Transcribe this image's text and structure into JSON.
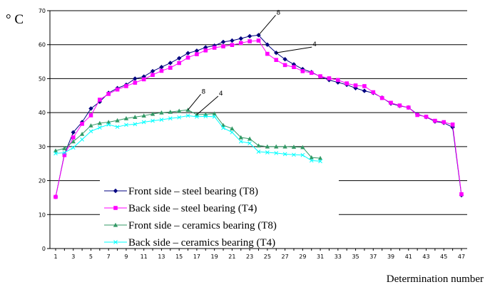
{
  "chart_data": {
    "type": "line",
    "title": "",
    "ylabel": "° C",
    "xlabel": "Determination number",
    "ylim": [
      0,
      70
    ],
    "yticks": [
      0,
      10,
      20,
      30,
      40,
      50,
      60,
      70
    ],
    "xlim": [
      1,
      47
    ],
    "xticks": [
      1,
      3,
      5,
      7,
      9,
      11,
      13,
      15,
      17,
      19,
      21,
      23,
      25,
      27,
      29,
      31,
      33,
      35,
      37,
      39,
      41,
      43,
      45,
      47
    ],
    "grid": "horizontal",
    "legend_position": "bottom-center",
    "series": [
      {
        "name": "Front side – steel bearing (T8)",
        "color": "#000080",
        "marker": "diamond",
        "x": [
          1,
          2,
          3,
          4,
          5,
          6,
          7,
          8,
          9,
          10,
          11,
          12,
          13,
          14,
          15,
          16,
          17,
          18,
          19,
          20,
          21,
          22,
          23,
          24,
          25,
          26,
          27,
          28,
          29,
          30,
          31,
          32,
          33,
          34,
          35,
          36,
          37,
          38,
          39,
          40,
          41,
          42,
          43,
          44,
          45,
          46,
          47
        ],
        "values": [
          15.2,
          27.8,
          34.2,
          37.2,
          41.2,
          43.2,
          45.8,
          47.2,
          48.2,
          50,
          50.6,
          52.2,
          53.4,
          54.6,
          56,
          57.5,
          58.2,
          59.2,
          59.7,
          60.8,
          61.2,
          61.8,
          62.5,
          62.8,
          60,
          57.6,
          55.7,
          54.2,
          52.8,
          51.9,
          50.6,
          49.6,
          48.9,
          48.2,
          47.2,
          46.4,
          45.8,
          44.4,
          42.7,
          42,
          41.5,
          39.5,
          38.7,
          37.4,
          37,
          35.7,
          15.7
        ]
      },
      {
        "name": "Back side – steel bearing (T4)",
        "color": "#ff00ff",
        "marker": "square",
        "x": [
          1,
          2,
          3,
          4,
          5,
          6,
          7,
          8,
          9,
          10,
          11,
          12,
          13,
          14,
          15,
          16,
          17,
          18,
          19,
          20,
          21,
          22,
          23,
          24,
          25,
          26,
          27,
          28,
          29,
          30,
          31,
          32,
          33,
          34,
          35,
          36,
          37,
          38,
          39,
          40,
          41,
          42,
          43,
          44,
          45,
          46,
          47
        ],
        "values": [
          15.2,
          27.5,
          32.7,
          36.7,
          39.2,
          43.8,
          45.5,
          46.8,
          47.8,
          48.8,
          49.8,
          51.1,
          52.3,
          53.2,
          54.6,
          56.2,
          57.2,
          58.3,
          59.1,
          59.5,
          59.9,
          60.5,
          61,
          61.2,
          57.3,
          55.5,
          54,
          53.4,
          52.2,
          51.7,
          50.7,
          50.1,
          49.6,
          48.6,
          48,
          47.8,
          46,
          44.3,
          42.9,
          42.1,
          41.5,
          39.3,
          38.8,
          37.6,
          37.2,
          36.5,
          16
        ]
      },
      {
        "name": "Front side – ceramics bearing (T8)",
        "color": "#339966",
        "marker": "triangle",
        "x": [
          1,
          2,
          3,
          4,
          5,
          6,
          7,
          8,
          9,
          10,
          11,
          12,
          13,
          14,
          15,
          16,
          17,
          18,
          19,
          20,
          21,
          22,
          23,
          24,
          25,
          26,
          27,
          28,
          29,
          30,
          31
        ],
        "values": [
          28.8,
          29.5,
          31.5,
          33.7,
          36.2,
          36.9,
          37.2,
          37.7,
          38.3,
          38.7,
          39.1,
          39.6,
          40,
          40.2,
          40.5,
          40.8,
          39.4,
          39.5,
          39.7,
          36.3,
          35.3,
          32.7,
          32.3,
          30.3,
          30,
          30,
          30,
          29.9,
          29.8,
          26.8,
          26.6
        ]
      },
      {
        "name": "Back side – ceramics bearing (T4)",
        "color": "#00ffff",
        "marker": "x",
        "x": [
          1,
          2,
          3,
          4,
          5,
          6,
          7,
          8,
          9,
          10,
          11,
          12,
          13,
          14,
          15,
          16,
          17,
          18,
          19,
          20,
          21,
          22,
          23,
          24,
          25,
          26,
          27,
          28,
          29,
          30,
          31
        ],
        "values": [
          28,
          28.2,
          29.7,
          32.1,
          34.5,
          35.6,
          36.5,
          35.8,
          36.4,
          36.6,
          37.2,
          37.6,
          37.9,
          38.3,
          38.6,
          39.1,
          38.8,
          38.9,
          38.8,
          35.5,
          34.2,
          31.5,
          31,
          28.5,
          28.3,
          28.1,
          27.8,
          27.6,
          27.5,
          25.9,
          25.7
        ]
      }
    ],
    "annotations": [
      {
        "text": "8",
        "x": 24,
        "y": 62.8
      },
      {
        "text": "4",
        "x": 26,
        "y": 57.6
      },
      {
        "text": "8",
        "x": 16,
        "y": 40.8
      },
      {
        "text": "4",
        "x": 17,
        "y": 39.4
      }
    ]
  }
}
